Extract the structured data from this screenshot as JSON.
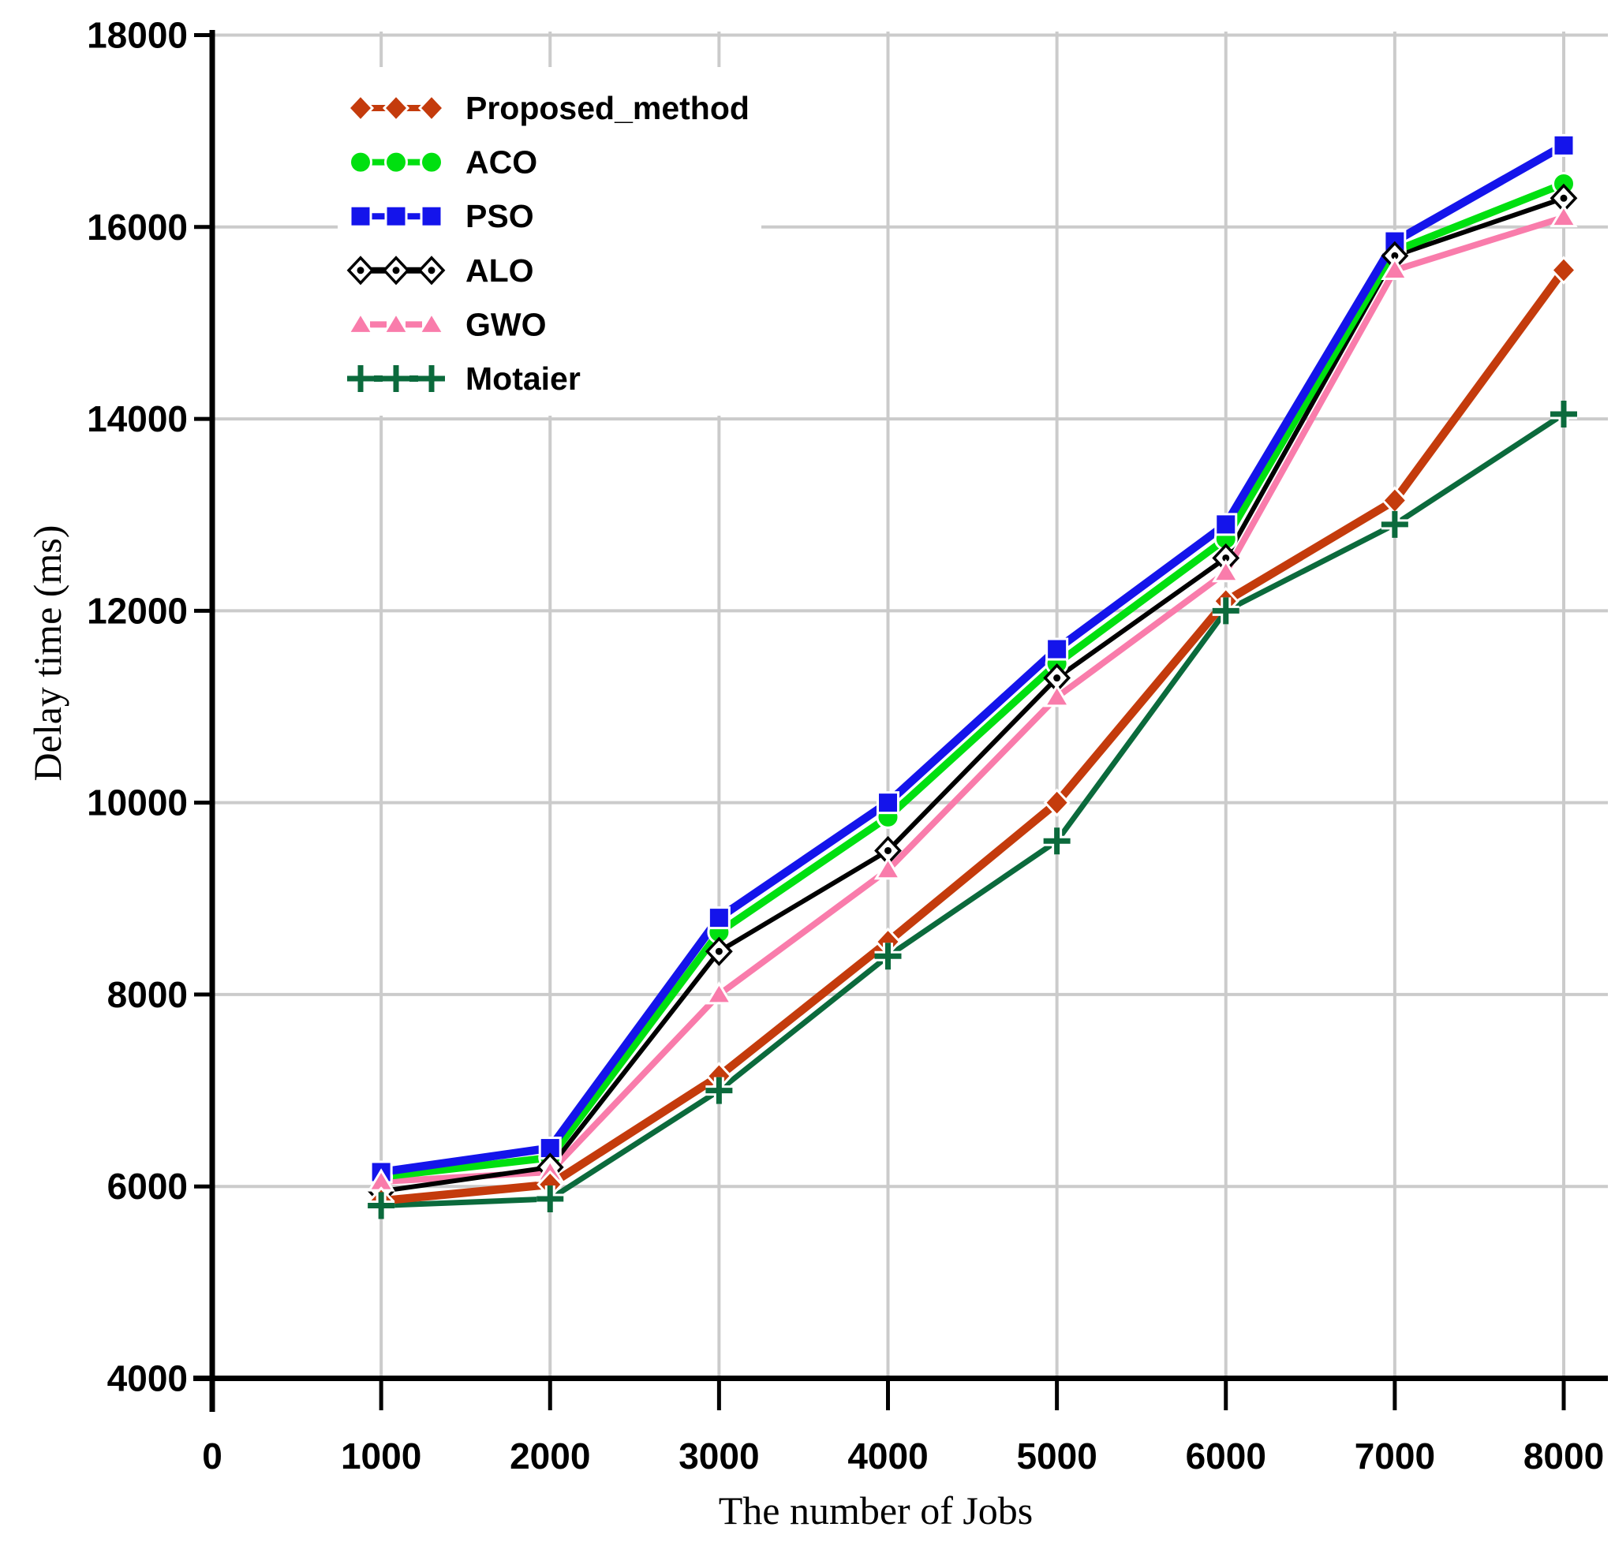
{
  "chart_data": {
    "type": "line",
    "title": "",
    "xlabel": "The number of Jobs",
    "ylabel": "Delay time (ms)",
    "x": [
      1000,
      2000,
      3000,
      4000,
      5000,
      6000,
      7000,
      8000
    ],
    "xlim": [
      0,
      8000
    ],
    "ylim": [
      4000,
      18000
    ],
    "x_ticks": [
      0,
      1000,
      2000,
      3000,
      4000,
      5000,
      6000,
      7000,
      8000
    ],
    "y_ticks": [
      4000,
      6000,
      8000,
      10000,
      12000,
      14000,
      16000,
      18000
    ],
    "grid": true,
    "legend_position": "top-left",
    "series": [
      {
        "name": "Proposed_method",
        "color": "#C43B0C",
        "marker": "diamond",
        "values": [
          5850,
          6020,
          7150,
          8550,
          10000,
          12100,
          13150,
          15550
        ]
      },
      {
        "name": "ACO",
        "color": "#00E010",
        "marker": "circle",
        "values": [
          6100,
          6300,
          8650,
          9850,
          11450,
          12750,
          15750,
          16450
        ]
      },
      {
        "name": "PSO",
        "color": "#1414EB",
        "marker": "square",
        "values": [
          6150,
          6400,
          8800,
          10000,
          11600,
          12900,
          15850,
          16850
        ]
      },
      {
        "name": "ALO",
        "color": "#000000",
        "marker": "open-diamond",
        "values": [
          5950,
          6200,
          8450,
          9500,
          11300,
          12550,
          15700,
          16300
        ]
      },
      {
        "name": "GWO",
        "color": "#F97CAB",
        "marker": "triangle",
        "values": [
          6050,
          6150,
          8000,
          9300,
          11100,
          12400,
          15550,
          16100
        ]
      },
      {
        "name": "Motaier",
        "color": "#0B6A3C",
        "marker": "plus",
        "values": [
          5800,
          5870,
          7000,
          8400,
          9600,
          12000,
          12900,
          14050
        ]
      }
    ]
  },
  "colors": {
    "grid": "#CBCBCB",
    "axis": "#000000",
    "text": "#000000",
    "background": "#FFFFFF",
    "marker_outline": "#FFFFFF"
  }
}
